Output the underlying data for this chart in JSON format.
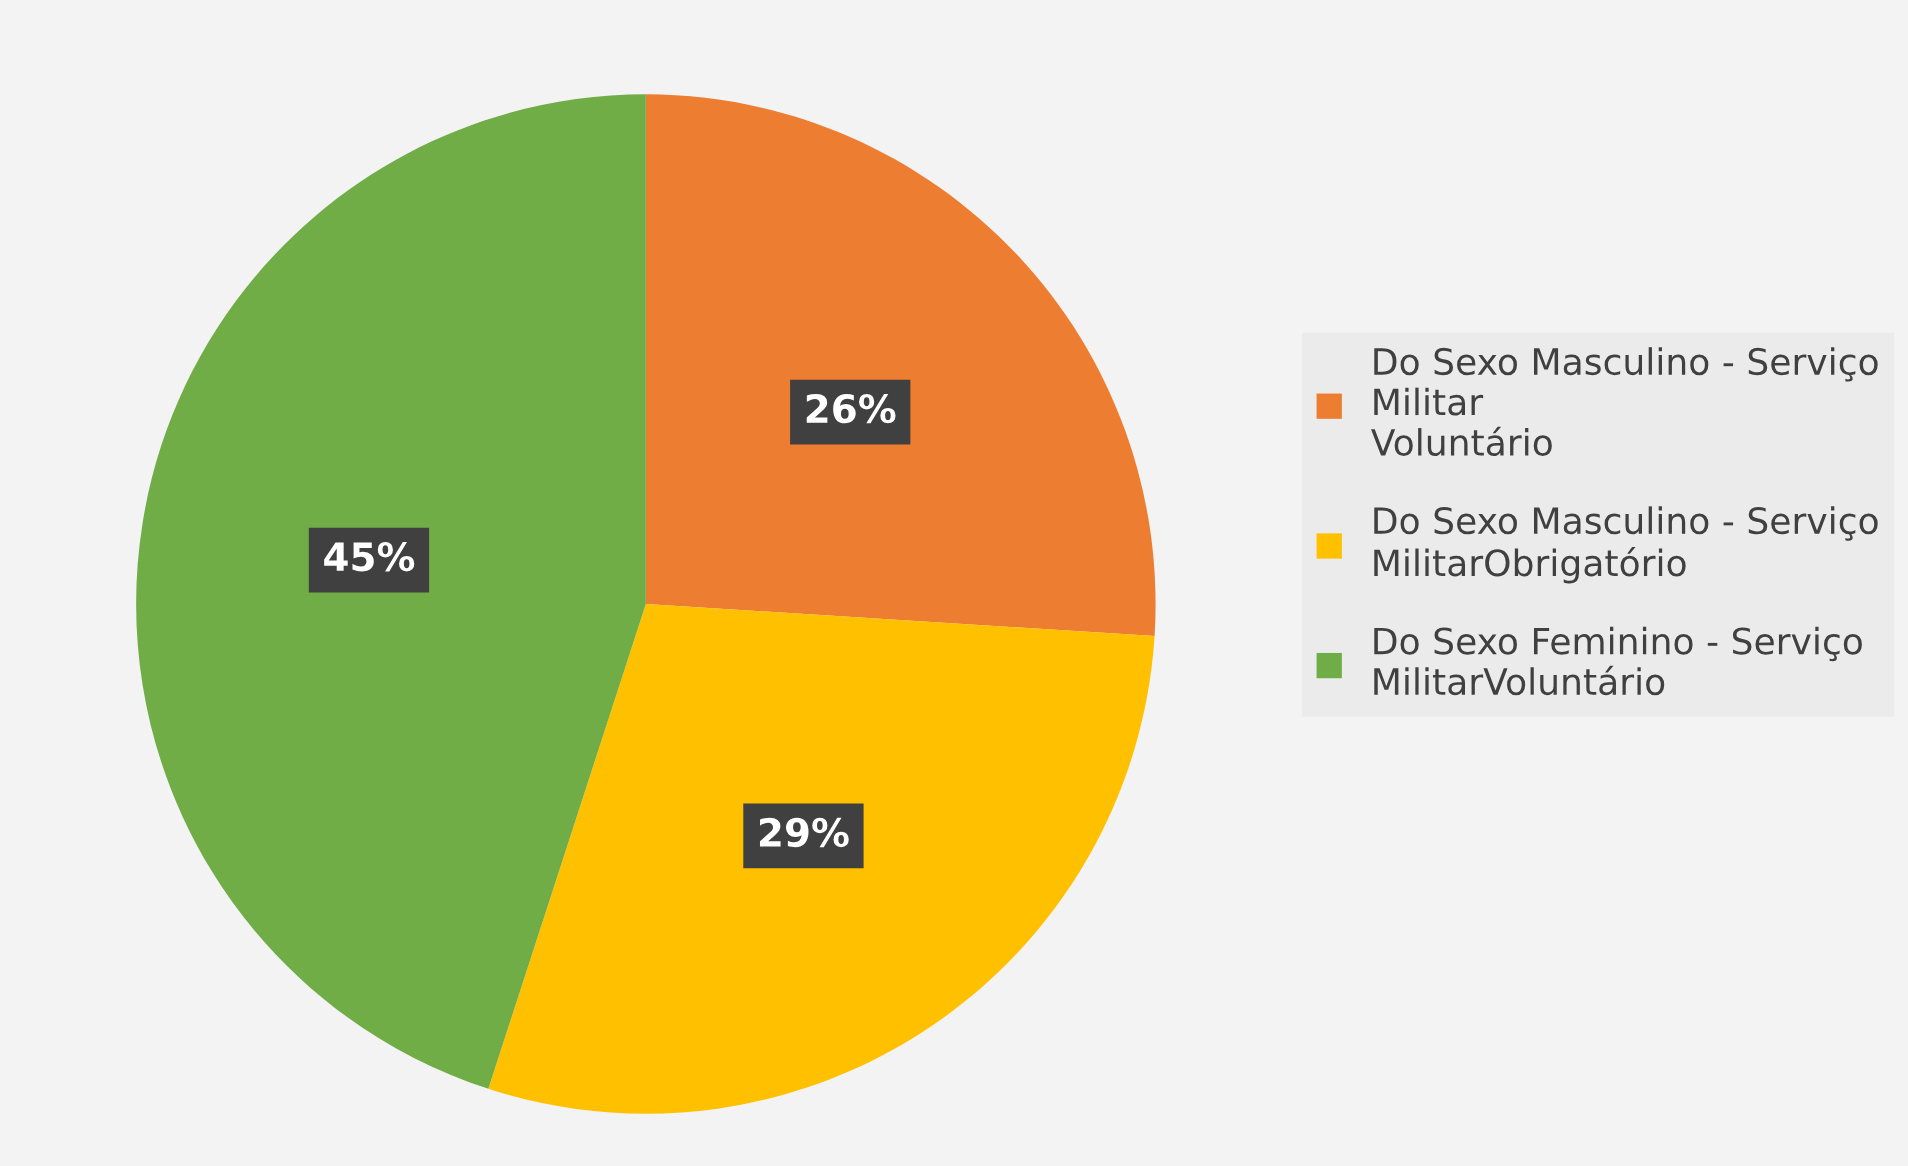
{
  "chart_data": {
    "type": "pie",
    "categories": [
      "Do Sexo Masculino - Serviço\nMilitar\nVoluntário",
      "Do Sexo Masculino - Serviço\nMilitarObrigatório",
      "Do Sexo Feminino - Serviço\nMilitarVoluntário"
    ],
    "values": [
      26,
      29,
      45
    ],
    "colors": [
      "#ed7d31",
      "#ffc000",
      "#70ad47"
    ],
    "value_labels": [
      "26%",
      "29%",
      "45%"
    ],
    "legend": "right"
  }
}
